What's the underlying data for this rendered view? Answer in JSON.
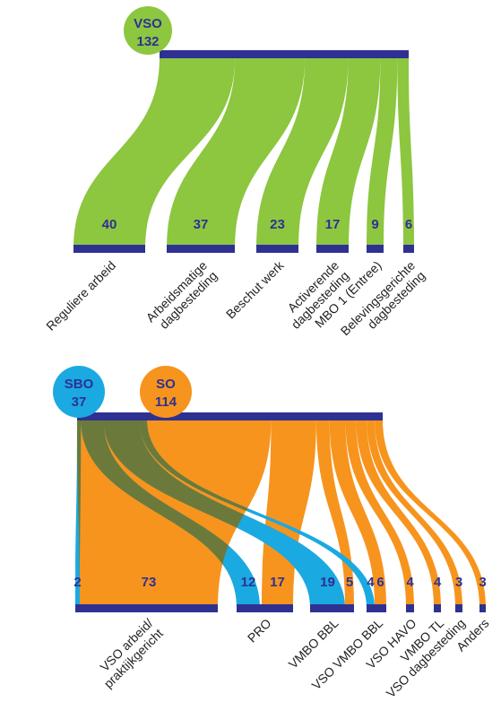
{
  "colors": {
    "green": "#8dc63f",
    "orange": "#f7941d",
    "blue": "#1ba9e1",
    "overlap": "#6b7a3a",
    "bar": "#2e3192",
    "value_text": "#2e3192"
  },
  "chart_data": [
    {
      "type": "sankey",
      "source": {
        "name": "VSO",
        "total": "132"
      },
      "targets": [
        {
          "label": [
            "Reguliere arbeid"
          ],
          "value": 40
        },
        {
          "label": [
            "Arbeidsmatige",
            "dagbesteding"
          ],
          "value": 37
        },
        {
          "label": [
            "Beschut werk"
          ],
          "value": 23
        },
        {
          "label": [
            "Activerende",
            "dagbesteding"
          ],
          "value": 17
        },
        {
          "label": [
            "MBO 1 (Entree)"
          ],
          "value": 9
        },
        {
          "label": [
            "Belevingsgerichte",
            "dagbesteding"
          ],
          "value": 6
        }
      ]
    },
    {
      "type": "sankey",
      "sources": [
        {
          "name": "SBO",
          "total": "37"
        },
        {
          "name": "SO",
          "total": "114"
        }
      ],
      "targets": [
        {
          "label": [
            "VSO arbeid/",
            "praktijkgericht"
          ],
          "values": [
            2,
            73
          ]
        },
        {
          "label": [
            "PRO"
          ],
          "values": [
            12,
            17
          ]
        },
        {
          "label": [
            "VMBO BBL"
          ],
          "values": [
            19,
            5
          ]
        },
        {
          "label": [
            "VSO VMBO BBL"
          ],
          "values": [
            4,
            6
          ]
        },
        {
          "label": [
            "VSO HAVO"
          ],
          "values": [
            null,
            4
          ]
        },
        {
          "label": [
            "VMBO TL"
          ],
          "values": [
            null,
            4
          ]
        },
        {
          "label": [
            "VSO dagbesteding"
          ],
          "values": [
            null,
            3
          ]
        },
        {
          "label": [
            "Anders"
          ],
          "values": [
            null,
            3
          ]
        }
      ]
    }
  ]
}
